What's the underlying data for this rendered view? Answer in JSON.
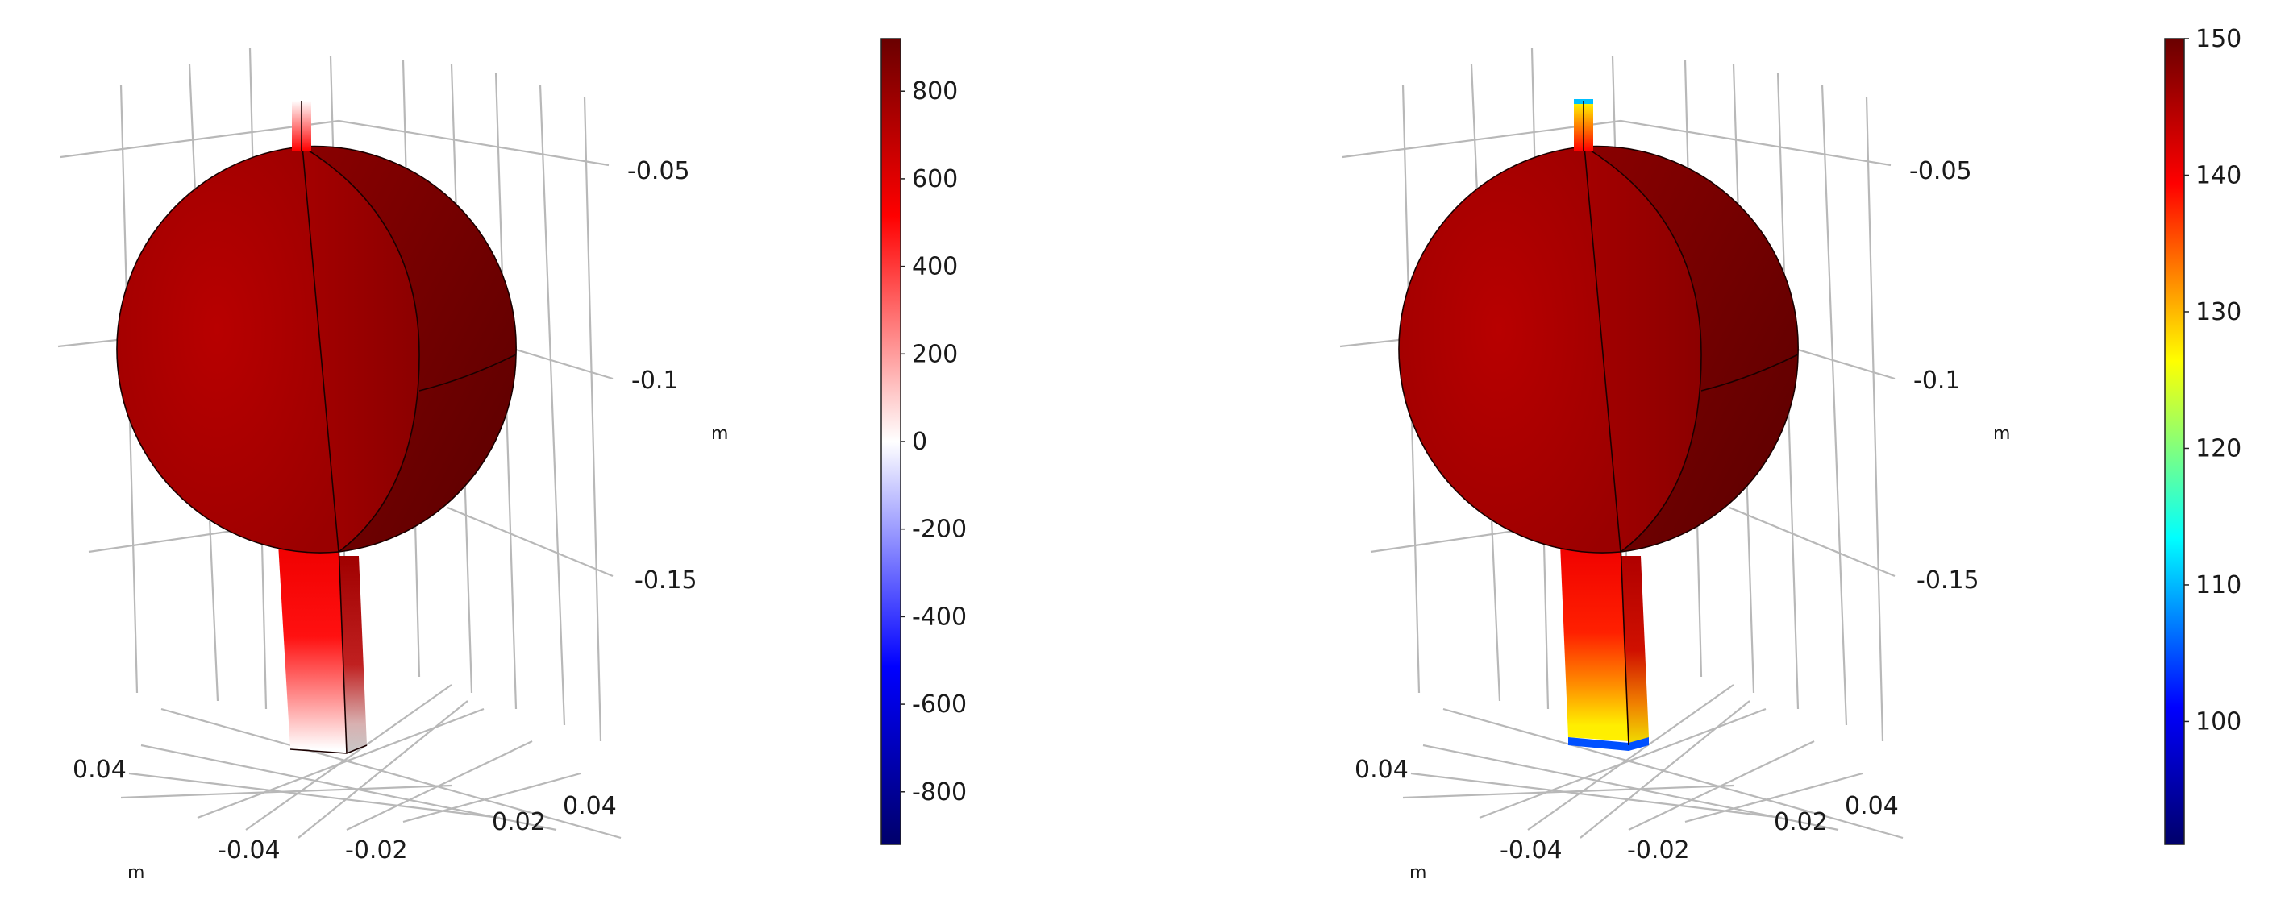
{
  "plots": [
    {
      "id": "left",
      "axis_labels": {
        "z_ticks": [
          "-0.05",
          "-0.1",
          "-0.15"
        ],
        "z_unit": "m",
        "x_left_tick": "0.04",
        "bottom_ticks": [
          "-0.04",
          "-0.02"
        ],
        "right_ticks": [
          "0.02",
          "0.04"
        ],
        "bottom_unit": "m"
      },
      "colorbar": {
        "ticks": [
          "800",
          "600",
          "400",
          "200",
          "0",
          "-200",
          "-400",
          "-600",
          "-800"
        ],
        "min": -920,
        "max": 920,
        "colormap": [
          "#00006a",
          "#0000ff",
          "#ffffff",
          "#ff0000",
          "#6a0000"
        ]
      }
    },
    {
      "id": "right",
      "axis_labels": {
        "z_ticks": [
          "-0.05",
          "-0.1",
          "-0.15"
        ],
        "z_unit": "m",
        "x_left_tick": "0.04",
        "bottom_ticks": [
          "-0.04",
          "-0.02"
        ],
        "right_ticks": [
          "0.02",
          "0.04"
        ],
        "bottom_unit": "m"
      },
      "colorbar": {
        "ticks": [
          "150",
          "140",
          "130",
          "120",
          "110",
          "100"
        ],
        "min": 91,
        "max": 150,
        "colormap": [
          "#00006a",
          "#0000ff",
          "#00ffff",
          "#ffff00",
          "#ff0000",
          "#6a0000"
        ]
      }
    }
  ]
}
